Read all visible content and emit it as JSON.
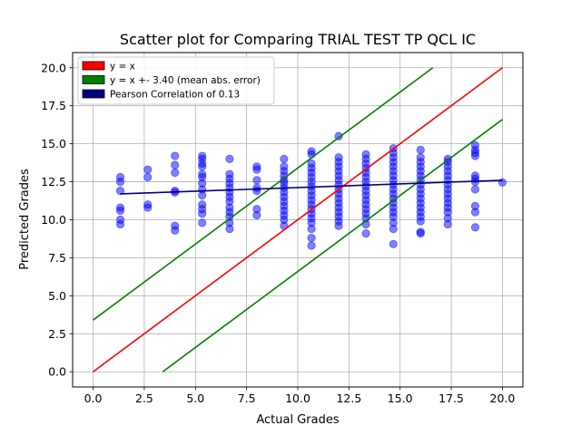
{
  "chart_data": {
    "type": "scatter",
    "title": "Scatter plot for Comparing TRIAL TEST TP QCL IC",
    "xlabel": "Actual Grades",
    "ylabel": "Predicted Grades",
    "xlim": [
      -1.0,
      21.0
    ],
    "ylim": [
      -1.0,
      21.0
    ],
    "x_ticks": [
      0.0,
      2.5,
      5.0,
      7.5,
      10.0,
      12.5,
      15.0,
      17.5,
      20.0
    ],
    "y_ticks": [
      0.0,
      2.5,
      5.0,
      7.5,
      10.0,
      12.5,
      15.0,
      17.5,
      20.0
    ],
    "x_tick_labels": [
      "0.0",
      "2.5",
      "5.0",
      "7.5",
      "10.0",
      "12.5",
      "15.0",
      "17.5",
      "20.0"
    ],
    "y_tick_labels": [
      "0.0",
      "2.5",
      "5.0",
      "7.5",
      "10.0",
      "12.5",
      "15.0",
      "17.5",
      "20.0"
    ],
    "grid": true,
    "legend_position": "top-left",
    "colors": {
      "identity": "#ff0000",
      "error_band": "#008000",
      "correlation": "#000080",
      "points": "#0000ff"
    },
    "legend": [
      {
        "label": "y = x",
        "color": "#ff0000"
      },
      {
        "label": "y = x +- 3.40 (mean abs. error)",
        "color": "#008000"
      },
      {
        "label": "Pearson Correlation of 0.13",
        "color": "#000080"
      }
    ],
    "lines": [
      {
        "name": "y = x",
        "x": [
          0,
          20
        ],
        "y": [
          0,
          20
        ],
        "color": "#ff0000"
      },
      {
        "name": "upper error band",
        "x": [
          0,
          16.6
        ],
        "y": [
          3.4,
          20
        ],
        "color": "#008000"
      },
      {
        "name": "lower error band",
        "x": [
          3.4,
          20
        ],
        "y": [
          0,
          16.6
        ],
        "color": "#008000"
      },
      {
        "name": "Pearson fit",
        "x": [
          1.33,
          20.0
        ],
        "y": [
          11.7,
          12.6
        ],
        "color": "#000080"
      }
    ],
    "points": [
      [
        1.33,
        12.8
      ],
      [
        1.33,
        12.5
      ],
      [
        1.33,
        11.9
      ],
      [
        1.33,
        10.8
      ],
      [
        1.33,
        10.6
      ],
      [
        1.33,
        10.0
      ],
      [
        1.33,
        9.7
      ],
      [
        2.67,
        13.3
      ],
      [
        2.67,
        12.8
      ],
      [
        2.67,
        11.0
      ],
      [
        2.67,
        10.8
      ],
      [
        4.0,
        14.2
      ],
      [
        4.0,
        13.6
      ],
      [
        4.0,
        13.1
      ],
      [
        4.0,
        11.9
      ],
      [
        4.0,
        11.8
      ],
      [
        4.0,
        9.6
      ],
      [
        4.0,
        9.3
      ],
      [
        5.33,
        14.2
      ],
      [
        5.33,
        14.0
      ],
      [
        5.33,
        13.7
      ],
      [
        5.33,
        13.5
      ],
      [
        5.33,
        13.0
      ],
      [
        5.33,
        12.8
      ],
      [
        5.33,
        12.4
      ],
      [
        5.33,
        12.0
      ],
      [
        5.33,
        11.6
      ],
      [
        5.33,
        11.0
      ],
      [
        5.33,
        10.7
      ],
      [
        5.33,
        10.4
      ],
      [
        5.33,
        9.8
      ],
      [
        6.67,
        14.0
      ],
      [
        6.67,
        13.0
      ],
      [
        6.67,
        12.7
      ],
      [
        6.67,
        12.4
      ],
      [
        6.67,
        12.1
      ],
      [
        6.67,
        11.8
      ],
      [
        6.67,
        11.5
      ],
      [
        6.67,
        11.2
      ],
      [
        6.67,
        10.8
      ],
      [
        6.67,
        10.5
      ],
      [
        6.67,
        10.2
      ],
      [
        6.67,
        9.8
      ],
      [
        6.67,
        9.4
      ],
      [
        8.0,
        13.5
      ],
      [
        8.0,
        13.3
      ],
      [
        8.0,
        12.6
      ],
      [
        8.0,
        12.1
      ],
      [
        8.0,
        11.9
      ],
      [
        8.0,
        10.7
      ],
      [
        8.0,
        10.3
      ],
      [
        9.33,
        14.0
      ],
      [
        9.33,
        13.5
      ],
      [
        9.33,
        13.2
      ],
      [
        9.33,
        12.9
      ],
      [
        9.33,
        12.6
      ],
      [
        9.33,
        12.4
      ],
      [
        9.33,
        12.1
      ],
      [
        9.33,
        11.8
      ],
      [
        9.33,
        11.5
      ],
      [
        9.33,
        11.2
      ],
      [
        9.33,
        10.9
      ],
      [
        9.33,
        10.6
      ],
      [
        9.33,
        10.3
      ],
      [
        9.33,
        10.0
      ],
      [
        9.33,
        9.6
      ],
      [
        10.67,
        14.5
      ],
      [
        10.67,
        14.3
      ],
      [
        10.67,
        13.7
      ],
      [
        10.67,
        13.4
      ],
      [
        10.67,
        13.1
      ],
      [
        10.67,
        12.8
      ],
      [
        10.67,
        12.5
      ],
      [
        10.67,
        12.2
      ],
      [
        10.67,
        11.9
      ],
      [
        10.67,
        11.6
      ],
      [
        10.67,
        11.3
      ],
      [
        10.67,
        11.0
      ],
      [
        10.67,
        10.7
      ],
      [
        10.67,
        10.4
      ],
      [
        10.67,
        10.1
      ],
      [
        10.67,
        9.8
      ],
      [
        10.67,
        9.4
      ],
      [
        10.67,
        8.8
      ],
      [
        10.67,
        8.3
      ],
      [
        12.0,
        15.5
      ],
      [
        12.0,
        14.1
      ],
      [
        12.0,
        13.8
      ],
      [
        12.0,
        13.5
      ],
      [
        12.0,
        13.2
      ],
      [
        12.0,
        12.9
      ],
      [
        12.0,
        12.6
      ],
      [
        12.0,
        12.3
      ],
      [
        12.0,
        12.0
      ],
      [
        12.0,
        11.7
      ],
      [
        12.0,
        11.4
      ],
      [
        12.0,
        11.1
      ],
      [
        12.0,
        10.8
      ],
      [
        12.0,
        10.5
      ],
      [
        12.0,
        10.2
      ],
      [
        12.0,
        9.9
      ],
      [
        12.0,
        9.6
      ],
      [
        13.33,
        14.3
      ],
      [
        13.33,
        14.0
      ],
      [
        13.33,
        13.7
      ],
      [
        13.33,
        13.4
      ],
      [
        13.33,
        13.1
      ],
      [
        13.33,
        12.8
      ],
      [
        13.33,
        12.5
      ],
      [
        13.33,
        12.2
      ],
      [
        13.33,
        11.9
      ],
      [
        13.33,
        11.6
      ],
      [
        13.33,
        11.3
      ],
      [
        13.33,
        11.0
      ],
      [
        13.33,
        10.7
      ],
      [
        13.33,
        10.4
      ],
      [
        13.33,
        10.1
      ],
      [
        13.33,
        9.7
      ],
      [
        13.33,
        9.1
      ],
      [
        14.67,
        14.7
      ],
      [
        14.67,
        14.4
      ],
      [
        14.67,
        14.1
      ],
      [
        14.67,
        13.8
      ],
      [
        14.67,
        13.5
      ],
      [
        14.67,
        13.2
      ],
      [
        14.67,
        12.9
      ],
      [
        14.67,
        12.6
      ],
      [
        14.67,
        12.3
      ],
      [
        14.67,
        12.0
      ],
      [
        14.67,
        11.7
      ],
      [
        14.67,
        11.4
      ],
      [
        14.67,
        11.1
      ],
      [
        14.67,
        10.8
      ],
      [
        14.67,
        10.5
      ],
      [
        14.67,
        10.2
      ],
      [
        14.67,
        9.8
      ],
      [
        14.67,
        9.4
      ],
      [
        14.67,
        8.4
      ],
      [
        16.0,
        14.6
      ],
      [
        16.0,
        14.1
      ],
      [
        16.0,
        13.8
      ],
      [
        16.0,
        13.5
      ],
      [
        16.0,
        13.2
      ],
      [
        16.0,
        12.9
      ],
      [
        16.0,
        12.6
      ],
      [
        16.0,
        12.3
      ],
      [
        16.0,
        12.0
      ],
      [
        16.0,
        11.7
      ],
      [
        16.0,
        11.4
      ],
      [
        16.0,
        11.1
      ],
      [
        16.0,
        10.8
      ],
      [
        16.0,
        10.5
      ],
      [
        16.0,
        10.2
      ],
      [
        16.0,
        9.9
      ],
      [
        16.0,
        9.2
      ],
      [
        16.0,
        9.1
      ],
      [
        17.33,
        14.0
      ],
      [
        17.33,
        13.8
      ],
      [
        17.33,
        13.5
      ],
      [
        17.33,
        13.2
      ],
      [
        17.33,
        12.9
      ],
      [
        17.33,
        12.6
      ],
      [
        17.33,
        12.3
      ],
      [
        17.33,
        12.0
      ],
      [
        17.33,
        11.7
      ],
      [
        17.33,
        11.4
      ],
      [
        17.33,
        11.1
      ],
      [
        17.33,
        10.8
      ],
      [
        17.33,
        10.5
      ],
      [
        17.33,
        10.1
      ],
      [
        17.33,
        9.7
      ],
      [
        18.67,
        14.9
      ],
      [
        18.67,
        14.6
      ],
      [
        18.67,
        14.4
      ],
      [
        18.67,
        14.2
      ],
      [
        18.67,
        12.9
      ],
      [
        18.67,
        12.7
      ],
      [
        18.67,
        12.5
      ],
      [
        18.67,
        12.0
      ],
      [
        18.67,
        10.9
      ],
      [
        18.67,
        10.5
      ],
      [
        18.67,
        9.5
      ],
      [
        20.0,
        12.45
      ]
    ]
  }
}
